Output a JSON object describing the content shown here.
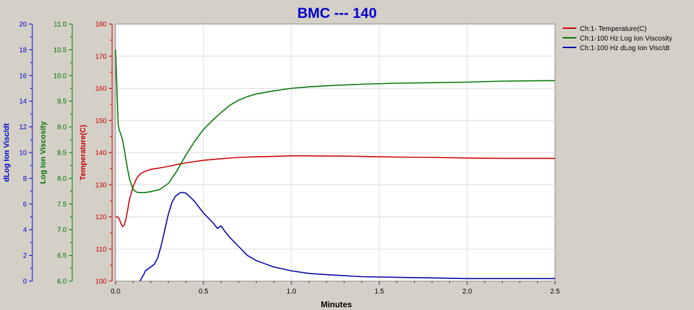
{
  "chart_data": {
    "type": "line",
    "title": "BMC --- 140",
    "xlabel": "Minutes",
    "xlim": [
      0,
      2.5
    ],
    "x_ticks": [
      0.0,
      0.5,
      1.0,
      1.5,
      2.0,
      2.5
    ],
    "x_tick_labels": [
      "0.0",
      "0.5",
      "1.0",
      "1.5",
      "2.0",
      "2.5"
    ],
    "legend_position": "top-right",
    "grid": true,
    "axes": [
      {
        "id": "dlog",
        "label": "dLog Ion Visc/dt",
        "color": "#0000cc",
        "ylim": [
          0,
          20
        ],
        "ticks": [
          0,
          2,
          4,
          6,
          8,
          10,
          12,
          14,
          16,
          18,
          20
        ],
        "tick_labels": [
          "0",
          "2",
          "4",
          "6",
          "8",
          "10",
          "12",
          "14",
          "16",
          "18",
          "20"
        ]
      },
      {
        "id": "logvisc",
        "label": "Log Ion Viscosity",
        "color": "#007700",
        "ylim": [
          6.0,
          11.0
        ],
        "ticks": [
          6.0,
          6.5,
          7.0,
          7.5,
          8.0,
          8.5,
          9.0,
          9.5,
          10.0,
          10.5,
          11.0
        ],
        "tick_labels": [
          "6.0",
          "6.5",
          "7.0",
          "7.5",
          "8.0",
          "8.5",
          "9.0",
          "9.5",
          "10.0",
          "10.5",
          "11.0"
        ]
      },
      {
        "id": "temp",
        "label": "Temperature(C)",
        "color": "#cc0000",
        "ylim": [
          100,
          180
        ],
        "ticks": [
          100,
          110,
          120,
          130,
          140,
          150,
          160,
          170,
          180
        ],
        "tick_labels": [
          "100",
          "110",
          "120",
          "130",
          "140",
          "150",
          "160",
          "170",
          "180"
        ]
      }
    ],
    "series": [
      {
        "name": "Ch:1- Temperature(C)",
        "axis": "temp",
        "color": "#cc0000",
        "x": [
          0.0,
          0.01,
          0.02,
          0.03,
          0.04,
          0.05,
          0.06,
          0.07,
          0.08,
          0.1,
          0.12,
          0.14,
          0.16,
          0.18,
          0.2,
          0.25,
          0.3,
          0.35,
          0.4,
          0.5,
          0.6,
          0.7,
          0.8,
          0.9,
          1.0,
          1.1,
          1.2,
          1.3,
          1.4,
          1.5,
          1.6,
          1.8,
          2.0,
          2.2,
          2.5
        ],
        "y": [
          120,
          120,
          119.5,
          118,
          117,
          117.5,
          119.5,
          122.5,
          125.5,
          129.5,
          132,
          133.3,
          134.0,
          134.4,
          134.8,
          135.2,
          135.7,
          136.3,
          136.8,
          137.6,
          138.1,
          138.5,
          138.7,
          138.8,
          139.0,
          139.0,
          138.9,
          138.9,
          138.8,
          138.7,
          138.6,
          138.5,
          138.3,
          138.2,
          138.2
        ]
      },
      {
        "name": "Ch:1-100 Hz Log Ion Viscosity",
        "axis": "logvisc",
        "color": "#007700",
        "x": [
          0.0,
          0.005,
          0.01,
          0.015,
          0.02,
          0.03,
          0.04,
          0.05,
          0.06,
          0.07,
          0.08,
          0.1,
          0.12,
          0.14,
          0.16,
          0.2,
          0.25,
          0.3,
          0.35,
          0.4,
          0.45,
          0.5,
          0.55,
          0.6,
          0.65,
          0.7,
          0.75,
          0.8,
          0.9,
          1.0,
          1.1,
          1.2,
          1.4,
          1.6,
          1.8,
          2.0,
          2.2,
          2.5
        ],
        "y": [
          10.5,
          10.0,
          9.5,
          9.05,
          8.95,
          8.85,
          8.75,
          8.55,
          8.35,
          8.15,
          7.98,
          7.78,
          7.73,
          7.72,
          7.72,
          7.74,
          7.78,
          7.9,
          8.15,
          8.45,
          8.72,
          8.95,
          9.12,
          9.28,
          9.42,
          9.52,
          9.59,
          9.64,
          9.7,
          9.75,
          9.78,
          9.8,
          9.83,
          9.85,
          9.86,
          9.87,
          9.89,
          9.9
        ]
      },
      {
        "name": "Ch:1-100 Hz dLog Ion Visc/dt",
        "axis": "dlog",
        "color": "#0000aa",
        "x": [
          0.14,
          0.15,
          0.16,
          0.17,
          0.18,
          0.2,
          0.22,
          0.24,
          0.26,
          0.28,
          0.3,
          0.32,
          0.34,
          0.36,
          0.37,
          0.38,
          0.4,
          0.42,
          0.45,
          0.5,
          0.55,
          0.58,
          0.6,
          0.62,
          0.65,
          0.7,
          0.75,
          0.8,
          0.9,
          1.0,
          1.1,
          1.2,
          1.4,
          1.6,
          1.8,
          2.0,
          2.2,
          2.5
        ],
        "y": [
          0.0,
          0.3,
          0.5,
          0.8,
          0.9,
          1.1,
          1.3,
          1.8,
          2.8,
          4.0,
          5.2,
          6.1,
          6.6,
          6.8,
          6.9,
          6.9,
          6.85,
          6.6,
          6.2,
          5.3,
          4.6,
          4.1,
          4.3,
          3.9,
          3.4,
          2.7,
          2.0,
          1.6,
          1.1,
          0.8,
          0.6,
          0.5,
          0.35,
          0.3,
          0.25,
          0.2,
          0.2,
          0.2
        ]
      }
    ]
  }
}
